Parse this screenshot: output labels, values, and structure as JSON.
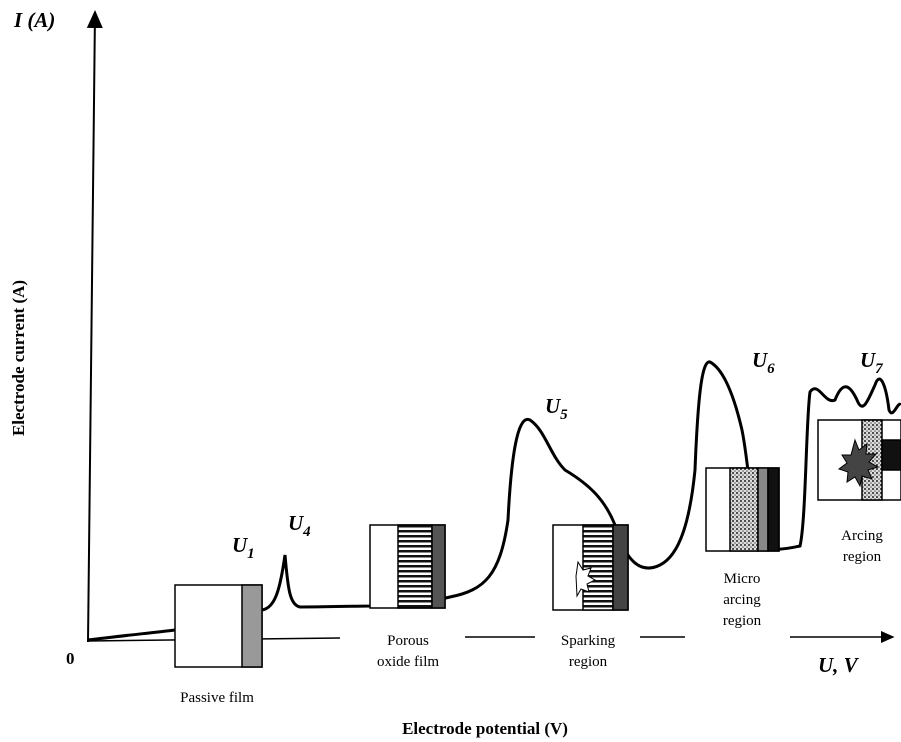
{
  "axes": {
    "y_symbol": "I (A)",
    "y_label": "Electrode current (A)",
    "origin": "0",
    "x_symbol": "U, V",
    "x_label": "Electrode potential (V)"
  },
  "points": [
    {
      "base": "U",
      "sub": "1"
    },
    {
      "base": "U",
      "sub": "4"
    },
    {
      "base": "U",
      "sub": "5"
    },
    {
      "base": "U",
      "sub": "6"
    },
    {
      "base": "U",
      "sub": "7"
    }
  ],
  "regions": [
    {
      "lines": [
        "Passive film"
      ]
    },
    {
      "lines": [
        "Porous",
        "oxide film"
      ]
    },
    {
      "lines": [
        "Sparking",
        "region"
      ]
    },
    {
      "lines": [
        "Micro",
        "arcing",
        "region"
      ]
    },
    {
      "lines": [
        "Arcing",
        "region"
      ]
    }
  ]
}
